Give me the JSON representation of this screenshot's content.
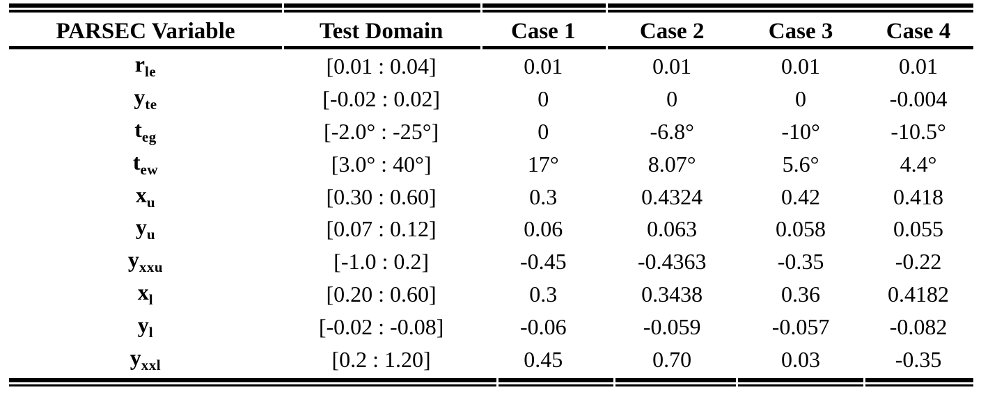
{
  "table": {
    "headers": [
      "PARSEC Variable",
      "Test Domain",
      "Case 1",
      "Case 2",
      "Case 3",
      "Case 4"
    ],
    "rows": [
      {
        "var_base": "r",
        "var_sub": "le",
        "domain": "[0.01 : 0.04]",
        "case1": "0.01",
        "case2": "0.01",
        "case3": "0.01",
        "case4": "0.01"
      },
      {
        "var_base": "y",
        "var_sub": "te",
        "domain": "[-0.02 : 0.02]",
        "case1": "0",
        "case2": "0",
        "case3": "0",
        "case4": "-0.004"
      },
      {
        "var_base": "t",
        "var_sub": "eg",
        "domain": "[-2.0° : -25°]",
        "case1": "0",
        "case2": "-6.8°",
        "case3": "-10°",
        "case4": "-10.5°"
      },
      {
        "var_base": "t",
        "var_sub": "ew",
        "domain": "[3.0° : 40°]",
        "case1": "17°",
        "case2": "8.07°",
        "case3": "5.6°",
        "case4": "4.4°"
      },
      {
        "var_base": "x",
        "var_sub": "u",
        "domain": "[0.30 : 0.60]",
        "case1": "0.3",
        "case2": "0.4324",
        "case3": "0.42",
        "case4": "0.418"
      },
      {
        "var_base": "y",
        "var_sub": "u",
        "domain": "[0.07 : 0.12]",
        "case1": "0.06",
        "case2": "0.063",
        "case3": "0.058",
        "case4": "0.055"
      },
      {
        "var_base": "y",
        "var_sub": "xxu",
        "domain": "[-1.0 : 0.2]",
        "case1": "-0.45",
        "case2": "-0.4363",
        "case3": "-0.35",
        "case4": "-0.22"
      },
      {
        "var_base": "x",
        "var_sub": "l",
        "domain": "[0.20 : 0.60]",
        "case1": "0.3",
        "case2": "0.3438",
        "case3": "0.36",
        "case4": "0.4182"
      },
      {
        "var_base": "y",
        "var_sub": "l",
        "domain": "[-0.02 : -0.08]",
        "case1": "-0.06",
        "case2": "-0.059",
        "case3": "-0.057",
        "case4": "-0.082"
      },
      {
        "var_base": "y",
        "var_sub": "xxl",
        "domain": "[0.2 : 1.20]",
        "case1": "0.45",
        "case2": "0.70",
        "case3": "0.03",
        "case4": "-0.35"
      }
    ]
  },
  "colors": {
    "text": "#000000",
    "background": "#ffffff",
    "rule": "#000000"
  }
}
